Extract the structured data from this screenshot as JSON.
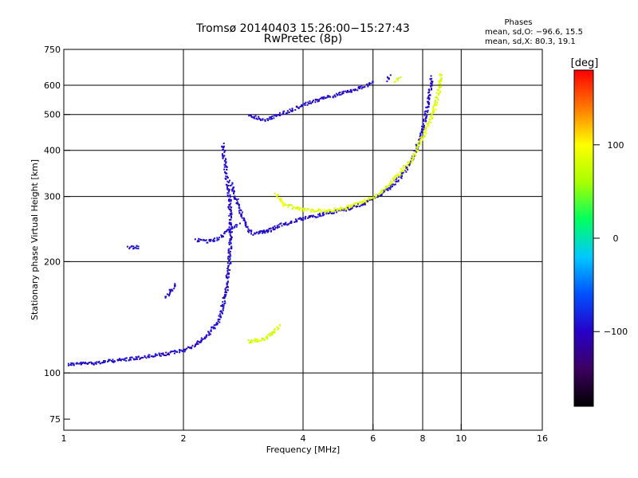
{
  "chart_data": {
    "type": "scatter",
    "title": "Tromsø 20140403 15:26:00−15:27:43",
    "subtitle": "RwPretec (8p)",
    "xlabel": "Frequency [MHz]",
    "ylabel": "Stationary phase Virtual Height [km]",
    "x_scale": "log2",
    "y_scale": "log",
    "xlim": [
      1,
      16
    ],
    "ylim": [
      70,
      750
    ],
    "x_ticks": [
      {
        "value": 1,
        "label": "1"
      },
      {
        "value": 2,
        "label": "2"
      },
      {
        "value": 4,
        "label": "4"
      },
      {
        "value": 6,
        "label": "6"
      },
      {
        "value": 8,
        "label": "8"
      },
      {
        "value": 10,
        "label": "10"
      },
      {
        "value": 16,
        "label": "16"
      }
    ],
    "x_grid": [
      2,
      4,
      6,
      8,
      10
    ],
    "y_ticks": [
      {
        "value": 75,
        "label": "75"
      },
      {
        "value": 100,
        "label": "100"
      },
      {
        "value": 200,
        "label": "200"
      },
      {
        "value": 300,
        "label": "300"
      },
      {
        "value": 400,
        "label": "400"
      },
      {
        "value": 500,
        "label": "500"
      },
      {
        "value": 600,
        "label": "600"
      },
      {
        "value": 750,
        "label": "750"
      }
    ],
    "y_grid": [
      100,
      200,
      300,
      400,
      500,
      600
    ],
    "grid": true,
    "phase_stats": {
      "heading": "Phases",
      "line_o": "mean, sd,O:  −96.6, 15.5",
      "line_x": "mean, sd,X:  80.3, 19.1"
    },
    "colorbar": {
      "label": "[deg]",
      "range": [
        -180,
        180
      ],
      "ticks": [
        {
          "value": 100,
          "label": "100"
        },
        {
          "value": 0,
          "label": "0"
        },
        {
          "value": -100,
          "label": "−100"
        }
      ],
      "stops": [
        "#000000",
        "#3d0060",
        "#2800c8",
        "#0050ff",
        "#00c8ff",
        "#00ff60",
        "#a8ff00",
        "#ffff00",
        "#ff7800",
        "#ff0000"
      ]
    },
    "traces": [
      {
        "name": "",
        "phase": -96,
        "spread": 0.02,
        "density": 1,
        "points": [
          [
            1.02,
            106
          ],
          [
            1.2,
            107
          ],
          [
            1.5,
            110
          ],
          [
            1.8,
            113
          ],
          [
            2.0,
            116
          ],
          [
            2.15,
            120
          ],
          [
            2.3,
            128
          ],
          [
            2.45,
            140
          ],
          [
            2.55,
            165
          ],
          [
            2.6,
            200
          ],
          [
            2.62,
            250
          ],
          [
            2.6,
            300
          ],
          [
            2.55,
            350
          ],
          [
            2.5,
            420
          ]
        ]
      },
      {
        "name": "",
        "phase": -96,
        "spread": 0.04,
        "density": 1,
        "points": [
          [
            2.62,
            330
          ],
          [
            2.75,
            280
          ],
          [
            2.9,
            245
          ],
          [
            3.0,
            238
          ],
          [
            3.3,
            245
          ]
        ]
      },
      {
        "name": "",
        "phase": -96,
        "spread": 0.02,
        "density": 1,
        "points": [
          [
            3.1,
            240
          ],
          [
            3.5,
            252
          ],
          [
            4.0,
            263
          ],
          [
            4.6,
            272
          ],
          [
            5.2,
            280
          ],
          [
            5.6,
            287
          ],
          [
            6.0,
            298
          ],
          [
            6.5,
            315
          ],
          [
            7.0,
            340
          ],
          [
            7.5,
            380
          ],
          [
            7.9,
            440
          ],
          [
            8.1,
            500
          ],
          [
            8.3,
            580
          ],
          [
            8.4,
            640
          ]
        ]
      },
      {
        "name": "",
        "phase": -96,
        "spread": 0.02,
        "density": 1,
        "points": [
          [
            2.9,
            500
          ],
          [
            3.2,
            485
          ],
          [
            3.6,
            510
          ],
          [
            4.0,
            535
          ],
          [
            4.6,
            560
          ],
          [
            5.2,
            580
          ],
          [
            5.7,
            600
          ],
          [
            6.0,
            615
          ]
        ]
      },
      {
        "name": "",
        "phase": -96,
        "spread": 0.02,
        "density": 1,
        "points": [
          [
            2.15,
            230
          ],
          [
            2.3,
            228
          ],
          [
            2.45,
            232
          ],
          [
            2.6,
            245
          ],
          [
            2.75,
            255
          ]
        ]
      },
      {
        "name": "",
        "phase": -96,
        "spread": 0.02,
        "density": 1,
        "points": [
          [
            1.45,
            220
          ],
          [
            1.55,
            220
          ]
        ]
      },
      {
        "name": "",
        "phase": -96,
        "spread": 0.02,
        "density": 1,
        "points": [
          [
            1.8,
            160
          ],
          [
            1.9,
            175
          ]
        ]
      },
      {
        "name": "",
        "phase": -96,
        "spread": 0.02,
        "density": 1,
        "points": [
          [
            6.5,
            620
          ],
          [
            6.6,
            640
          ]
        ]
      },
      {
        "name": "",
        "phase": 85,
        "spread": 0.02,
        "density": 1,
        "points": [
          [
            3.4,
            305
          ],
          [
            3.6,
            285
          ],
          [
            4.0,
            278
          ],
          [
            4.5,
            275
          ],
          [
            5.0,
            280
          ],
          [
            5.5,
            288
          ],
          [
            6.0,
            300
          ],
          [
            6.5,
            320
          ],
          [
            7.0,
            350
          ],
          [
            7.5,
            380
          ],
          [
            7.9,
            430
          ],
          [
            8.3,
            480
          ],
          [
            8.6,
            540
          ],
          [
            8.8,
            600
          ],
          [
            8.9,
            650
          ]
        ]
      },
      {
        "name": "",
        "phase": 80,
        "spread": 0.02,
        "density": 1,
        "points": [
          [
            2.9,
            122
          ],
          [
            3.2,
            124
          ],
          [
            3.5,
            135
          ]
        ]
      },
      {
        "name": "",
        "phase": 80,
        "spread": 0.02,
        "density": 1,
        "points": [
          [
            6.8,
            620
          ],
          [
            7.0,
            630
          ]
        ]
      }
    ]
  }
}
